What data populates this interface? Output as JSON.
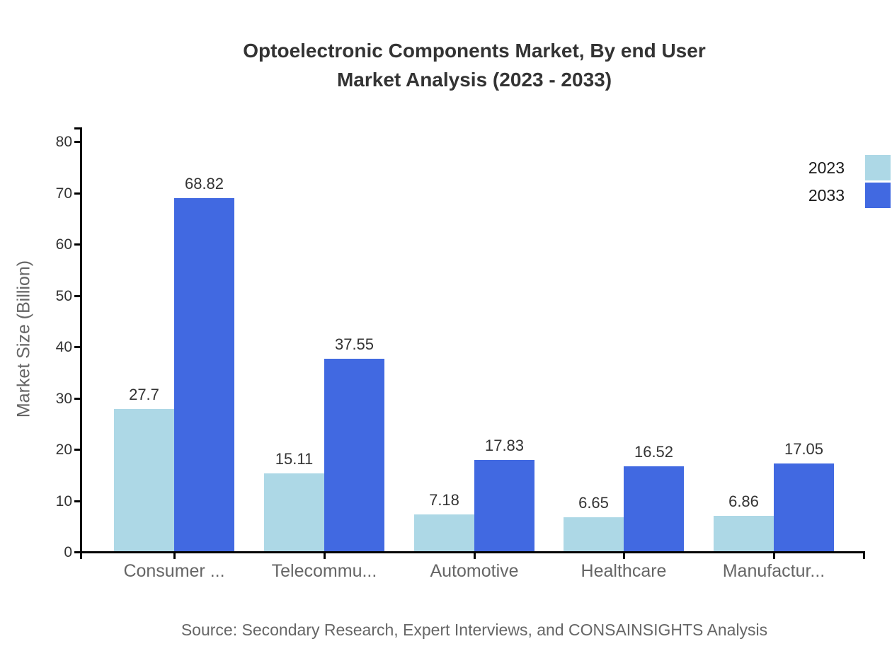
{
  "title": {
    "line1": "Optoelectronic Components Market, By end User",
    "line2": "Market Analysis (2023 - 2033)"
  },
  "source": "Source: Secondary Research, Expert Interviews, and CONSAINSIGHTS Analysis",
  "chart_data": {
    "type": "bar",
    "title": "Optoelectronic Components Market, By end User Market Analysis (2023 - 2033)",
    "categories": [
      "Consumer ...",
      "Telecommu...",
      "Automotive",
      "Healthcare",
      "Manufactur..."
    ],
    "series": [
      {
        "name": "2023",
        "color": "#add8e6",
        "values": [
          27.7,
          15.11,
          7.18,
          6.65,
          6.86
        ]
      },
      {
        "name": "2033",
        "color": "#4169e1",
        "values": [
          68.82,
          37.55,
          17.83,
          16.52,
          17.05
        ]
      }
    ],
    "xlabel": "",
    "ylabel": "Market Size (Billion)",
    "ylim": [
      0,
      80
    ],
    "yticks": [
      0,
      10,
      20,
      30,
      40,
      50,
      60,
      70,
      80
    ],
    "grid": false,
    "legend_position": "top-right",
    "value_labels": true,
    "axis_color": "#000000",
    "title_color": "#333333",
    "tick_label_color": "#333333",
    "category_label_color": "#666666",
    "source_color": "#666666"
  }
}
